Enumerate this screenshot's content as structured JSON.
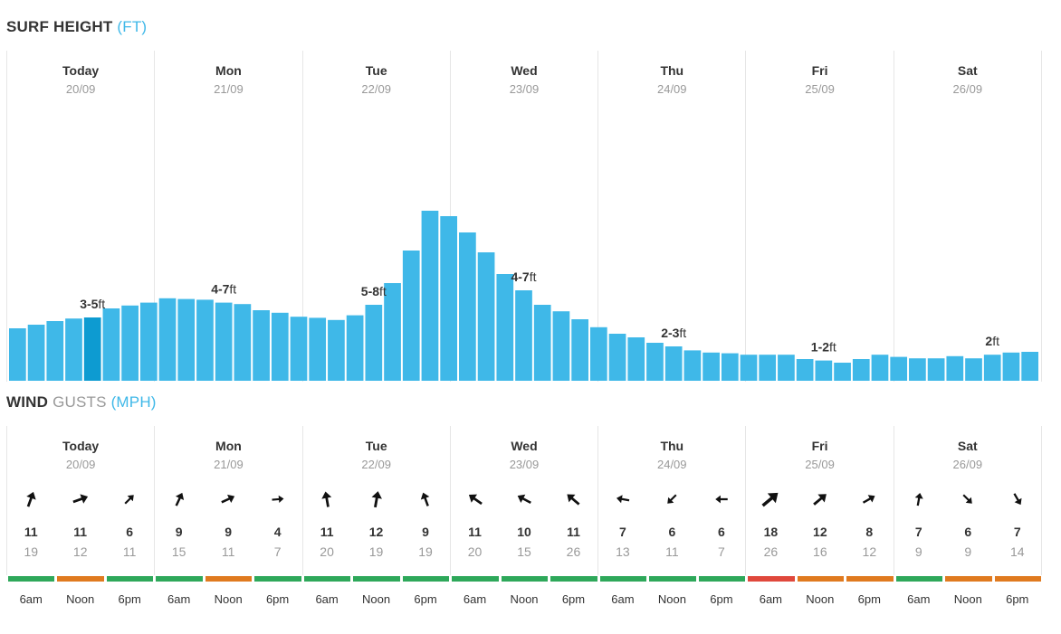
{
  "surf": {
    "title_strong": "SURF HEIGHT",
    "title_unit": "(FT)"
  },
  "wind": {
    "title_strong": "WIND",
    "title_light": "GUSTS",
    "title_unit": "(MPH)"
  },
  "days": [
    {
      "name": "Today",
      "date": "20/09"
    },
    {
      "name": "Mon",
      "date": "21/09"
    },
    {
      "name": "Tue",
      "date": "22/09"
    },
    {
      "name": "Wed",
      "date": "23/09"
    },
    {
      "name": "Thu",
      "date": "24/09"
    },
    {
      "name": "Fri",
      "date": "25/09"
    },
    {
      "name": "Sat",
      "date": "26/09"
    }
  ],
  "chart_data": {
    "type": "bar",
    "title": "SURF HEIGHT (FT)",
    "unit": "ft",
    "ylim": [
      0,
      10
    ],
    "highlighted_index": 4,
    "values": [
      1.45,
      1.55,
      1.65,
      1.72,
      1.75,
      2.0,
      2.08,
      2.16,
      2.28,
      2.26,
      2.24,
      2.16,
      2.12,
      1.95,
      1.88,
      1.77,
      1.74,
      1.68,
      1.81,
      2.1,
      2.7,
      3.6,
      4.7,
      4.55,
      4.1,
      3.55,
      2.95,
      2.5,
      2.1,
      1.92,
      1.7,
      1.48,
      1.3,
      1.2,
      1.05,
      0.95,
      0.84,
      0.78,
      0.76,
      0.72,
      0.72,
      0.72,
      0.6,
      0.56,
      0.5,
      0.6,
      0.72,
      0.66,
      0.62,
      0.62,
      0.68,
      0.62,
      0.72,
      0.78,
      0.8
    ],
    "day_labels": [
      {
        "bold": "3-5",
        "unit": "ft",
        "bar_index": 4
      },
      {
        "bold": "4-7",
        "unit": "ft",
        "bar_index": 11
      },
      {
        "bold": "5-8",
        "unit": "ft",
        "bar_index": 19
      },
      {
        "bold": "4-7",
        "unit": "ft",
        "bar_index": 27
      },
      {
        "bold": "2-3",
        "unit": "ft",
        "bar_index": 35
      },
      {
        "bold": "1-2",
        "unit": "ft",
        "bar_index": 43
      },
      {
        "bold": "2",
        "unit": "ft",
        "bar_index": 52
      }
    ]
  },
  "wind_data": {
    "times": [
      "6am",
      "Noon",
      "6pm"
    ],
    "colors": {
      "green": "#2ea85a",
      "orange": "#e07a1f",
      "red": "#e0483c"
    },
    "days": [
      [
        {
          "speed": "11",
          "gust": "19",
          "deg": 200,
          "color": "green"
        },
        {
          "speed": "11",
          "gust": "12",
          "deg": 250,
          "color": "orange"
        },
        {
          "speed": "6",
          "gust": "11",
          "deg": 225,
          "color": "green"
        }
      ],
      [
        {
          "speed": "9",
          "gust": "15",
          "deg": 205,
          "color": "green"
        },
        {
          "speed": "9",
          "gust": "11",
          "deg": 245,
          "color": "orange"
        },
        {
          "speed": "4",
          "gust": "7",
          "deg": 265,
          "color": "green"
        }
      ],
      [
        {
          "speed": "11",
          "gust": "20",
          "deg": 170,
          "color": "green"
        },
        {
          "speed": "12",
          "gust": "19",
          "deg": 190,
          "color": "green"
        },
        {
          "speed": "9",
          "gust": "19",
          "deg": 160,
          "color": "green"
        }
      ],
      [
        {
          "speed": "11",
          "gust": "20",
          "deg": 125,
          "color": "green"
        },
        {
          "speed": "10",
          "gust": "15",
          "deg": 118,
          "color": "green"
        },
        {
          "speed": "11",
          "gust": "26",
          "deg": 130,
          "color": "green"
        }
      ],
      [
        {
          "speed": "7",
          "gust": "13",
          "deg": 100,
          "color": "green"
        },
        {
          "speed": "6",
          "gust": "11",
          "deg": 45,
          "color": "green"
        },
        {
          "speed": "6",
          "gust": "7",
          "deg": 90,
          "color": "green"
        }
      ],
      [
        {
          "speed": "18",
          "gust": "26",
          "deg": 230,
          "color": "red"
        },
        {
          "speed": "12",
          "gust": "16",
          "deg": 230,
          "color": "orange"
        },
        {
          "speed": "8",
          "gust": "12",
          "deg": 240,
          "color": "orange"
        }
      ],
      [
        {
          "speed": "7",
          "gust": "9",
          "deg": 190,
          "color": "green"
        },
        {
          "speed": "6",
          "gust": "9",
          "deg": 315,
          "color": "orange"
        },
        {
          "speed": "7",
          "gust": "14",
          "deg": 330,
          "color": "orange"
        }
      ]
    ]
  }
}
